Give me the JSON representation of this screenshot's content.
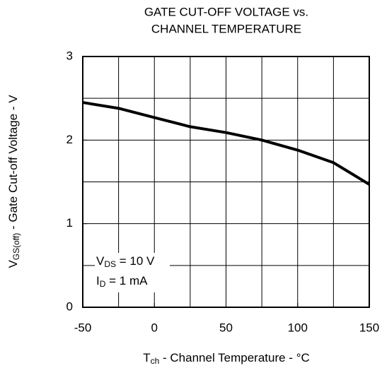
{
  "chart_data": {
    "type": "line",
    "title": [
      "GATE CUT-OFF VOLTAGE vs.",
      "CHANNEL TEMPERATURE"
    ],
    "x_label": [
      "T",
      "ch",
      " - Channel Temperature - °C"
    ],
    "y_label": [
      "V",
      "GS(off)",
      " - Gate Cut-off Voltage - V"
    ],
    "annotations": [
      [
        "V",
        "DS",
        " = 10 V"
      ],
      [
        "I",
        "D",
        " = 1 mA"
      ]
    ],
    "x": [
      -50,
      -25,
      0,
      25,
      50,
      75,
      100,
      125,
      150
    ],
    "series": [
      {
        "color": "#000000",
        "values": [
          2.45,
          2.38,
          2.27,
          2.16,
          2.09,
          2.0,
          1.88,
          1.73,
          1.47
        ]
      }
    ],
    "xlim": [
      -50,
      150
    ],
    "ylim": [
      0,
      3
    ],
    "xticks": [
      -50,
      0,
      50,
      100,
      150
    ],
    "yticks": [
      0,
      1,
      2,
      3
    ],
    "xgrid": [
      -50,
      -25,
      0,
      25,
      50,
      75,
      100,
      125,
      150
    ],
    "ygrid": [
      0,
      0.5,
      1,
      1.5,
      2,
      2.5,
      3
    ],
    "grid": true
  }
}
